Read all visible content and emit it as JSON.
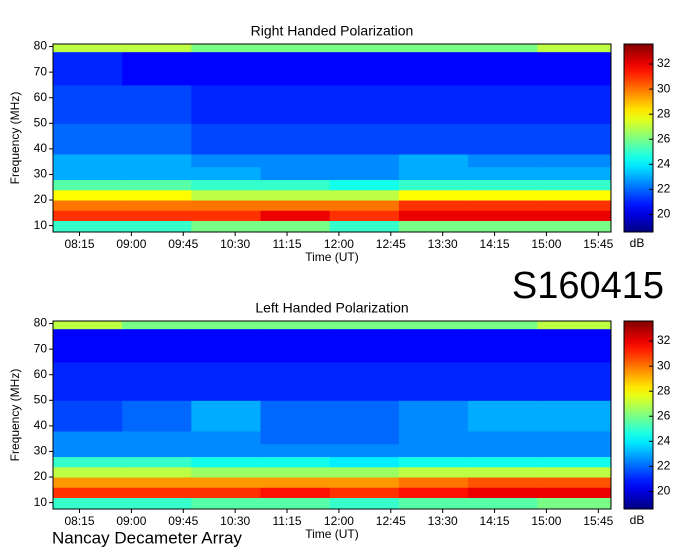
{
  "chart_data": [
    {
      "type": "heatmap",
      "title": "Right Handed Polarization",
      "x_label": "Time (UT)",
      "y_label": "Frequency (MHz)",
      "xbins": [
        472,
        532,
        592,
        652,
        712,
        772,
        832,
        892,
        956
      ],
      "ybins": [
        7.5,
        12,
        16,
        20,
        24,
        28,
        33,
        38,
        50,
        65,
        78,
        81
      ],
      "values": [
        [
          25,
          25,
          26,
          26,
          25,
          26,
          26,
          26
        ],
        [
          31,
          31,
          31,
          32,
          31,
          32,
          32,
          32
        ],
        [
          30,
          30,
          30,
          30,
          30,
          31,
          31,
          31
        ],
        [
          28,
          28,
          27,
          27,
          27,
          28,
          28,
          28
        ],
        [
          25.5,
          25.5,
          25,
          25,
          24.5,
          25,
          25,
          25
        ],
        [
          23,
          23,
          23,
          22.5,
          22.5,
          23,
          23,
          23
        ],
        [
          23,
          23,
          22.5,
          22.5,
          22.5,
          23,
          22.5,
          22.5
        ],
        [
          22,
          22,
          21.5,
          21.5,
          21.5,
          21.5,
          21.5,
          21.5
        ],
        [
          21.5,
          21.5,
          21,
          21,
          21,
          21,
          21,
          21
        ],
        [
          21,
          20.5,
          20.5,
          20.5,
          20.5,
          20.5,
          20.5,
          20.5
        ],
        [
          27,
          27,
          26,
          26,
          26,
          26,
          26,
          27
        ]
      ],
      "xlim": [
        472,
        956
      ],
      "ylim": [
        7.5,
        81
      ],
      "xticks": [
        {
          "value": 495,
          "label": "08:15"
        },
        {
          "value": 540,
          "label": "09:00"
        },
        {
          "value": 585,
          "label": "09:45"
        },
        {
          "value": 630,
          "label": "10:30"
        },
        {
          "value": 675,
          "label": "11:15"
        },
        {
          "value": 720,
          "label": "12:00"
        },
        {
          "value": 765,
          "label": "12:45"
        },
        {
          "value": 810,
          "label": "13:30"
        },
        {
          "value": 855,
          "label": "14:15"
        },
        {
          "value": 900,
          "label": "15:00"
        },
        {
          "value": 945,
          "label": "15:45"
        }
      ],
      "yticks": [
        10,
        20,
        30,
        40,
        50,
        60,
        70,
        80
      ],
      "colormap": "jet",
      "zlim": [
        18.6,
        33.6
      ],
      "zticks": [
        20,
        22,
        24,
        26,
        28,
        30,
        32
      ],
      "z_label": "dB"
    },
    {
      "type": "heatmap",
      "title": "Left Handed Polarization",
      "x_label": "Time (UT)",
      "y_label": "Frequency (MHz)",
      "xbins": [
        472,
        532,
        592,
        652,
        712,
        772,
        832,
        892,
        956
      ],
      "ybins": [
        7.5,
        12,
        16,
        20,
        24,
        28,
        33,
        38,
        50,
        65,
        78,
        81
      ],
      "values": [
        [
          25,
          25,
          25.5,
          25.5,
          25,
          25.5,
          25.5,
          26
        ],
        [
          31,
          31,
          31,
          31.5,
          31,
          31.5,
          32,
          32
        ],
        [
          29.5,
          29.5,
          29.5,
          29.5,
          29.5,
          30,
          30.5,
          30.5
        ],
        [
          27,
          27,
          26.5,
          26.5,
          26.5,
          27,
          27,
          27
        ],
        [
          25,
          25,
          24.5,
          24.5,
          24,
          24.5,
          24.5,
          24.5
        ],
        [
          22.5,
          22.5,
          22.5,
          22.5,
          22.5,
          22.5,
          22.5,
          22.5
        ],
        [
          22.5,
          22.5,
          22.5,
          22,
          22,
          22.5,
          22.5,
          22.5
        ],
        [
          21.5,
          22,
          23,
          22,
          22,
          22.5,
          23,
          23
        ],
        [
          21,
          21,
          21,
          21,
          21,
          21,
          21,
          21
        ],
        [
          20.5,
          20.5,
          20.5,
          20.5,
          20.5,
          20.5,
          20.5,
          20.5
        ],
        [
          27,
          26,
          26,
          26,
          26,
          26,
          26,
          27
        ]
      ],
      "xlim": [
        472,
        956
      ],
      "ylim": [
        7.5,
        81
      ],
      "xticks": [
        {
          "value": 495,
          "label": "08:15"
        },
        {
          "value": 540,
          "label": "09:00"
        },
        {
          "value": 585,
          "label": "09:45"
        },
        {
          "value": 630,
          "label": "10:30"
        },
        {
          "value": 675,
          "label": "11:15"
        },
        {
          "value": 720,
          "label": "12:00"
        },
        {
          "value": 765,
          "label": "12:45"
        },
        {
          "value": 810,
          "label": "13:30"
        },
        {
          "value": 855,
          "label": "14:15"
        },
        {
          "value": 900,
          "label": "15:00"
        },
        {
          "value": 945,
          "label": "15:45"
        }
      ],
      "yticks": [
        10,
        20,
        30,
        40,
        50,
        60,
        70,
        80
      ],
      "colormap": "jet",
      "zlim": [
        18.6,
        33.6
      ],
      "zticks": [
        20,
        22,
        24,
        26,
        28,
        30,
        32
      ],
      "z_label": "dB"
    }
  ],
  "label": "S160415",
  "footer": "Nancay Decameter Array"
}
